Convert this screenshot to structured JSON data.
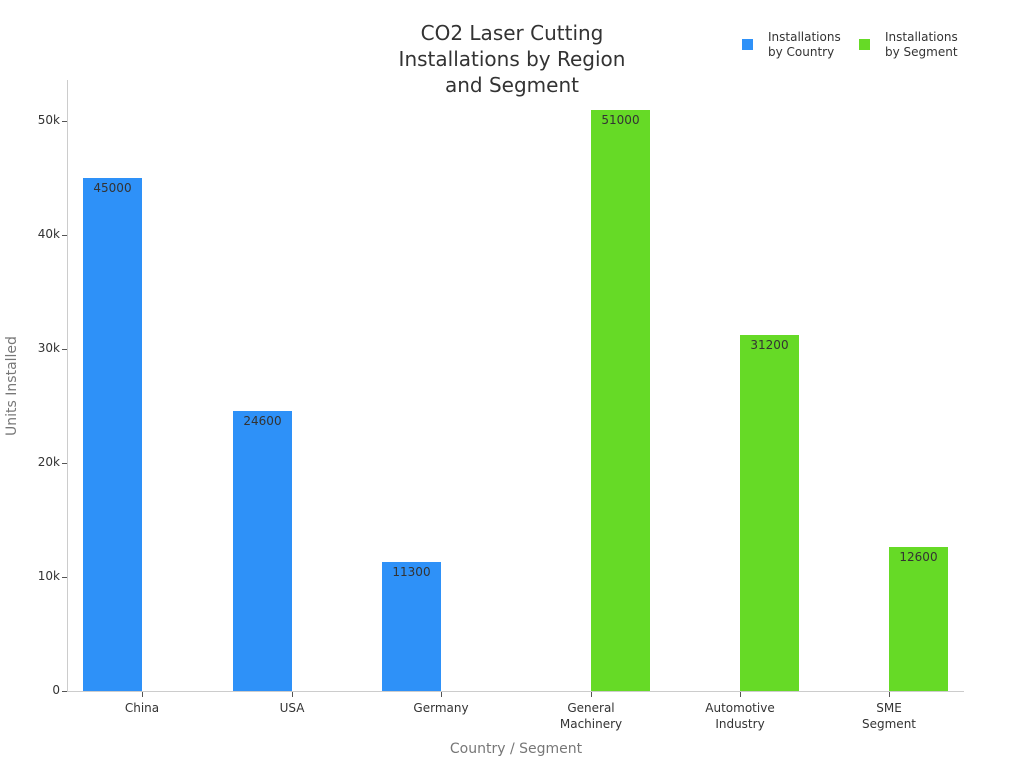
{
  "chart_data": {
    "type": "bar",
    "title": "CO2 Laser Cutting Installations by Region and Segment",
    "title_lines": [
      "CO2 Laser Cutting",
      "Installations by Region",
      "and Segment"
    ],
    "xlabel": "Country / Segment",
    "ylabel": "Units Installed",
    "ylim": [
      0,
      54000
    ],
    "yticks": [
      "0",
      "10k",
      "20k",
      "30k",
      "40k",
      "50k"
    ],
    "categories": [
      "China",
      "USA",
      "Germany",
      "General Machinery",
      "Automotive Industry",
      "SME Segment"
    ],
    "category_lines": [
      [
        "China"
      ],
      [
        "USA"
      ],
      [
        "Germany"
      ],
      [
        "General",
        "Machinery"
      ],
      [
        "Automotive",
        "Industry"
      ],
      [
        "SME",
        "Segment"
      ]
    ],
    "series": [
      {
        "name": "Installations by Country",
        "color": "#2e91f8",
        "values": [
          45000,
          24600,
          11300,
          null,
          null,
          null
        ]
      },
      {
        "name": "Installations by Segment",
        "color": "#66da26",
        "values": [
          null,
          null,
          null,
          51000,
          31200,
          12600
        ]
      }
    ],
    "legend": {
      "position": "top-right",
      "entries": [
        [
          "Installations",
          "by Country"
        ],
        [
          "Installations",
          "by Segment"
        ]
      ]
    },
    "grid": false
  }
}
